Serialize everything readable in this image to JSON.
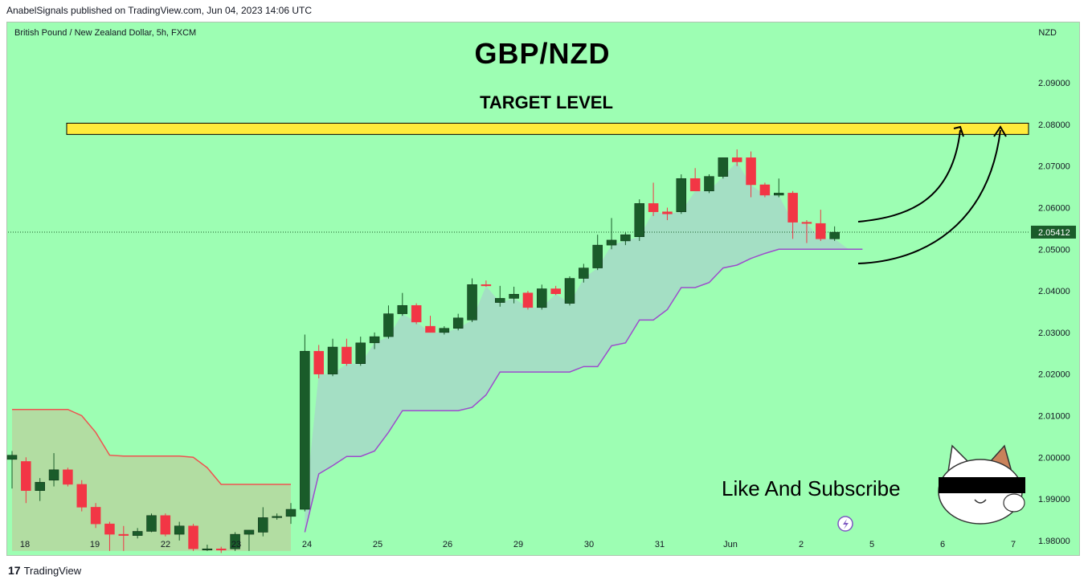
{
  "header": {
    "text": "AnabelSignals published on TradingView.com, Jun 04, 2023 14:06 UTC"
  },
  "footer": {
    "logo": "17",
    "brand": "TradingView"
  },
  "symbol_line": "British Pound / New Zealand Dollar, 5h, FXCM",
  "currency": "NZD",
  "title": "GBP/NZD",
  "target_label": "TARGET LEVEL",
  "cta": "Like And Subscribe",
  "colors": {
    "background": "#9dfeb3",
    "up": "#1a5c2a",
    "down": "#f23645",
    "target_zone": "#ffeb3b",
    "upper_band": "#ef5350",
    "lower_band": "#9c4dcc"
  },
  "chart_data": {
    "type": "candlestick",
    "title": "GBP/NZD",
    "x_ticks": [
      "18",
      "19",
      "22",
      "23",
      "24",
      "25",
      "26",
      "29",
      "30",
      "31",
      "Jun",
      "2",
      "5",
      "6",
      "7"
    ],
    "y_ticks": [
      "2.09000",
      "2.08000",
      "2.07000",
      "2.06000",
      "2.05000",
      "2.04000",
      "2.03000",
      "2.02000",
      "2.01000",
      "2.00000",
      "1.99000",
      "1.98000"
    ],
    "ylim": [
      1.9765,
      2.1045
    ],
    "last_price": "2.05412",
    "target_level": 2.08,
    "candles": [
      {
        "o": 1.9995,
        "h": 2.0015,
        "l": 1.9925,
        "c": 2.0005
      },
      {
        "o": 1.999,
        "h": 2.0,
        "l": 1.989,
        "c": 1.992
      },
      {
        "o": 1.992,
        "h": 1.995,
        "l": 1.9895,
        "c": 1.994
      },
      {
        "o": 1.9945,
        "h": 2.001,
        "l": 1.993,
        "c": 1.997
      },
      {
        "o": 1.997,
        "h": 1.9975,
        "l": 1.993,
        "c": 1.9935
      },
      {
        "o": 1.9935,
        "h": 1.9945,
        "l": 1.987,
        "c": 1.988
      },
      {
        "o": 1.988,
        "h": 1.989,
        "l": 1.983,
        "c": 1.984
      },
      {
        "o": 1.984,
        "h": 1.9845,
        "l": 1.9775,
        "c": 1.9815
      },
      {
        "o": 1.9815,
        "h": 1.9835,
        "l": 1.9775,
        "c": 1.9812
      },
      {
        "o": 1.9812,
        "h": 1.983,
        "l": 1.9805,
        "c": 1.9822
      },
      {
        "o": 1.9822,
        "h": 1.9865,
        "l": 1.982,
        "c": 1.986
      },
      {
        "o": 1.986,
        "h": 1.9865,
        "l": 1.981,
        "c": 1.9815
      },
      {
        "o": 1.9815,
        "h": 1.9845,
        "l": 1.98,
        "c": 1.9835
      },
      {
        "o": 1.9835,
        "h": 1.984,
        "l": 1.9775,
        "c": 1.978
      },
      {
        "o": 1.978,
        "h": 1.979,
        "l": 1.9775,
        "c": 1.978
      },
      {
        "o": 1.978,
        "h": 1.9785,
        "l": 1.977,
        "c": 1.9777
      },
      {
        "o": 1.978,
        "h": 1.982,
        "l": 1.9775,
        "c": 1.9815
      },
      {
        "o": 1.9815,
        "h": 1.9825,
        "l": 1.9775,
        "c": 1.9825
      },
      {
        "o": 1.982,
        "h": 1.988,
        "l": 1.981,
        "c": 1.9855
      },
      {
        "o": 1.9855,
        "h": 1.9865,
        "l": 1.985,
        "c": 1.9858
      },
      {
        "o": 1.9858,
        "h": 1.989,
        "l": 1.984,
        "c": 1.9875
      },
      {
        "o": 1.9875,
        "h": 2.0295,
        "l": 1.987,
        "c": 2.0255
      },
      {
        "o": 2.0255,
        "h": 2.027,
        "l": 2.019,
        "c": 2.02
      },
      {
        "o": 2.02,
        "h": 2.0285,
        "l": 2.0195,
        "c": 2.0265
      },
      {
        "o": 2.0265,
        "h": 2.0285,
        "l": 2.022,
        "c": 2.0225
      },
      {
        "o": 2.0225,
        "h": 2.029,
        "l": 2.022,
        "c": 2.0275
      },
      {
        "o": 2.0275,
        "h": 2.03,
        "l": 2.026,
        "c": 2.029
      },
      {
        "o": 2.029,
        "h": 2.0365,
        "l": 2.0285,
        "c": 2.0345
      },
      {
        "o": 2.0345,
        "h": 2.0395,
        "l": 2.034,
        "c": 2.0365
      },
      {
        "o": 2.0365,
        "h": 2.037,
        "l": 2.032,
        "c": 2.0325
      },
      {
        "o": 2.0315,
        "h": 2.034,
        "l": 2.03,
        "c": 2.03
      },
      {
        "o": 2.03,
        "h": 2.0315,
        "l": 2.0295,
        "c": 2.031
      },
      {
        "o": 2.031,
        "h": 2.0345,
        "l": 2.0305,
        "c": 2.0335
      },
      {
        "o": 2.033,
        "h": 2.043,
        "l": 2.0325,
        "c": 2.0415
      },
      {
        "o": 2.0415,
        "h": 2.0425,
        "l": 2.041,
        "c": 2.0412
      },
      {
        "o": 2.0372,
        "h": 2.0412,
        "l": 2.0362,
        "c": 2.0382
      },
      {
        "o": 2.0382,
        "h": 2.041,
        "l": 2.037,
        "c": 2.0392
      },
      {
        "o": 2.0395,
        "h": 2.04,
        "l": 2.0355,
        "c": 2.036
      },
      {
        "o": 2.036,
        "h": 2.0415,
        "l": 2.0355,
        "c": 2.0405
      },
      {
        "o": 2.0405,
        "h": 2.0412,
        "l": 2.039,
        "c": 2.0393
      },
      {
        "o": 2.037,
        "h": 2.0435,
        "l": 2.0365,
        "c": 2.043
      },
      {
        "o": 2.043,
        "h": 2.0465,
        "l": 2.042,
        "c": 2.0455
      },
      {
        "o": 2.0455,
        "h": 2.0535,
        "l": 2.045,
        "c": 2.051
      },
      {
        "o": 2.051,
        "h": 2.0575,
        "l": 2.05,
        "c": 2.0522
      },
      {
        "o": 2.052,
        "h": 2.054,
        "l": 2.051,
        "c": 2.0535
      },
      {
        "o": 2.053,
        "h": 2.062,
        "l": 2.052,
        "c": 2.061
      },
      {
        "o": 2.061,
        "h": 2.066,
        "l": 2.058,
        "c": 2.059
      },
      {
        "o": 2.059,
        "h": 2.06,
        "l": 2.057,
        "c": 2.0585
      },
      {
        "o": 2.059,
        "h": 2.068,
        "l": 2.0585,
        "c": 2.067
      },
      {
        "o": 2.067,
        "h": 2.0695,
        "l": 2.064,
        "c": 2.064
      },
      {
        "o": 2.064,
        "h": 2.068,
        "l": 2.0635,
        "c": 2.0675
      },
      {
        "o": 2.0675,
        "h": 2.072,
        "l": 2.067,
        "c": 2.072
      },
      {
        "o": 2.072,
        "h": 2.074,
        "l": 2.07,
        "c": 2.071
      },
      {
        "o": 2.072,
        "h": 2.0735,
        "l": 2.0625,
        "c": 2.0655
      },
      {
        "o": 2.0655,
        "h": 2.066,
        "l": 2.0625,
        "c": 2.063
      },
      {
        "o": 2.063,
        "h": 2.067,
        "l": 2.0625,
        "c": 2.0635
      },
      {
        "o": 2.0635,
        "h": 2.064,
        "l": 2.0525,
        "c": 2.0565
      },
      {
        "o": 2.0565,
        "h": 2.057,
        "l": 2.0515,
        "c": 2.0562
      },
      {
        "o": 2.0562,
        "h": 2.0595,
        "l": 2.052,
        "c": 2.0525
      },
      {
        "o": 2.0525,
        "h": 2.0555,
        "l": 2.052,
        "c": 2.0541
      }
    ],
    "upper_band": [
      2.0115,
      2.0115,
      2.0115,
      2.0115,
      2.0115,
      2.01,
      2.006,
      2.0005,
      2.0003,
      2.0003,
      2.0003,
      2.0003,
      2.0003,
      2.0,
      1.9975,
      1.9935,
      1.9935,
      1.9935,
      1.9935,
      1.9935,
      1.9935
    ],
    "lower_band": [
      1.982,
      1.996,
      1.998,
      2.0002,
      2.0002,
      2.0015,
      2.006,
      2.0112,
      2.0112,
      2.0112,
      2.0112,
      2.0112,
      2.012,
      2.015,
      2.0205,
      2.0205,
      2.0205,
      2.0205,
      2.0205,
      2.0205,
      2.0218,
      2.0218,
      2.0268,
      2.0275,
      2.033,
      2.033,
      2.0355,
      2.0408,
      2.0408,
      2.042,
      2.0455,
      2.0462,
      2.0478,
      2.049,
      2.05,
      2.05,
      2.05,
      2.05,
      2.05,
      2.05,
      2.05
    ]
  }
}
